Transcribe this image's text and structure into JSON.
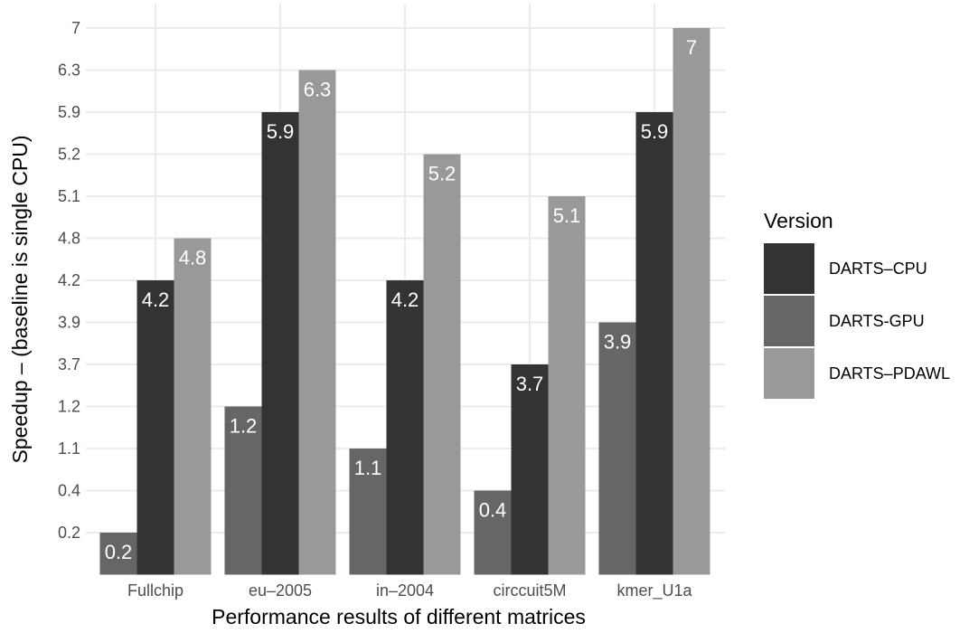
{
  "chart_data": {
    "type": "bar",
    "title": "",
    "xlabel": "Performance results of different matrices",
    "ylabel": "Speedup – (baseline is single CPU)",
    "y_axis_note": "categorical y axis: tick labels listed bottom to top in data order",
    "y_ticks": [
      "0.2",
      "0.4",
      "1.1",
      "1.2",
      "3.7",
      "3.9",
      "4.2",
      "4.8",
      "5.1",
      "5.2",
      "5.9",
      "6.3",
      "7"
    ],
    "categories": [
      "Fullchip",
      "eu–2005",
      "in–2004",
      "circcuit5M",
      "kmer_U1a"
    ],
    "series": [
      {
        "name": "DARTS–CPU",
        "color": "#333333",
        "values": [
          4.2,
          5.9,
          4.2,
          3.7,
          5.9
        ],
        "labels": [
          "4.2",
          "5.9",
          "4.2",
          "3.7",
          "5.9"
        ]
      },
      {
        "name": "DARTS-GPU",
        "color": "#666666",
        "values": [
          0.2,
          1.2,
          1.1,
          0.4,
          3.9
        ],
        "labels": [
          "0.2",
          "1.2",
          "1.1",
          "0.4",
          "3.9"
        ]
      },
      {
        "name": "DARTS–PDAWL",
        "color": "#999999",
        "values": [
          4.8,
          6.3,
          5.2,
          5.1,
          7
        ],
        "labels": [
          "4.8",
          "6.3",
          "5.2",
          "5.1",
          "7"
        ]
      }
    ],
    "bar_order_within_group": [
      "DARTS-GPU",
      "DARTS–CPU",
      "DARTS–PDAWL"
    ],
    "legend": {
      "title": "Version",
      "position": "right"
    },
    "grid": true,
    "background": "#ffffff",
    "grid_color": "#ebebeb"
  }
}
